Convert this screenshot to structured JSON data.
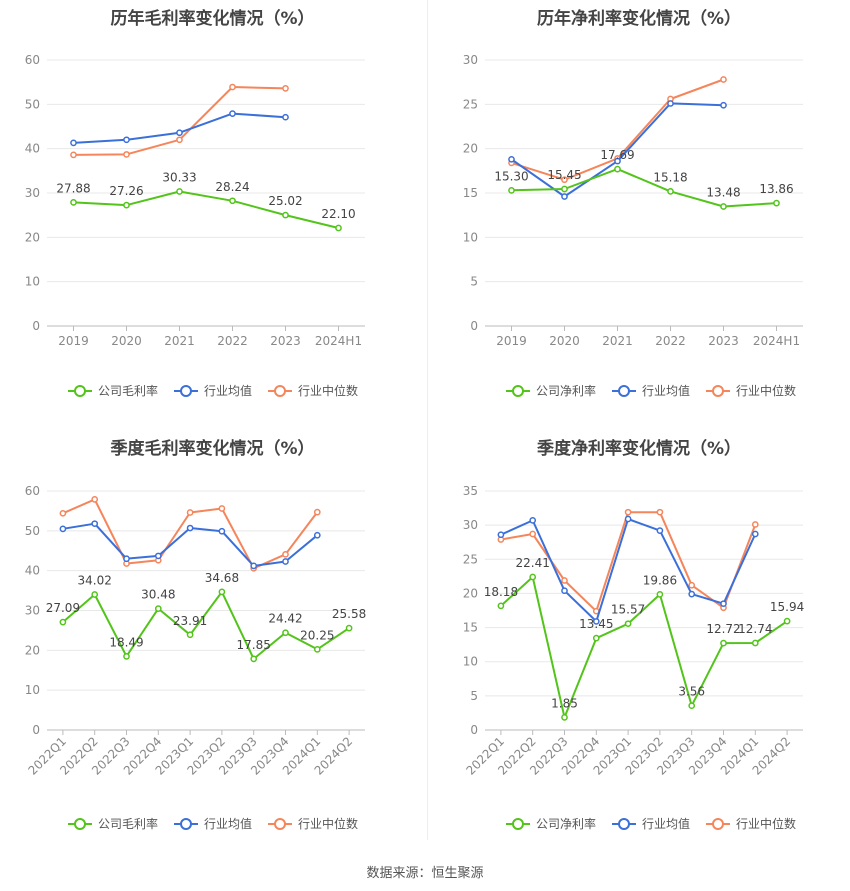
{
  "footer": "数据来源：恒生聚源",
  "chart_data": [
    {
      "type": "line",
      "title": "历年毛利率变化情况（%）",
      "categories": [
        "2019",
        "2020",
        "2021",
        "2022",
        "2023",
        "2024H1"
      ],
      "ylim": [
        0,
        60
      ],
      "yticks": [
        0,
        10,
        20,
        30,
        40,
        50,
        60
      ],
      "grid": true,
      "legend_position": "bottom",
      "series": [
        {
          "name": "公司毛利率",
          "color": "#52c41a",
          "labels": true,
          "values": [
            27.88,
            27.26,
            30.33,
            28.24,
            25.02,
            22.1
          ]
        },
        {
          "name": "行业均值",
          "color": "#3b6fd9",
          "labels": false,
          "values": [
            41.3,
            42.0,
            43.6,
            47.9,
            47.1,
            null
          ]
        },
        {
          "name": "行业中位数",
          "color": "#f5855a",
          "labels": false,
          "values": [
            38.6,
            38.7,
            42.0,
            53.9,
            53.6,
            null
          ]
        }
      ]
    },
    {
      "type": "line",
      "title": "历年净利率变化情况（%）",
      "categories": [
        "2019",
        "2020",
        "2021",
        "2022",
        "2023",
        "2024H1"
      ],
      "ylim": [
        0,
        30
      ],
      "yticks": [
        0,
        5,
        10,
        15,
        20,
        25,
        30
      ],
      "grid": true,
      "legend_position": "bottom",
      "series": [
        {
          "name": "公司净利率",
          "color": "#52c41a",
          "labels": true,
          "values": [
            15.3,
            15.45,
            17.69,
            15.18,
            13.48,
            13.86
          ]
        },
        {
          "name": "行业均值",
          "color": "#3b6fd9",
          "labels": false,
          "values": [
            18.8,
            14.6,
            18.6,
            25.1,
            24.9,
            null
          ]
        },
        {
          "name": "行业中位数",
          "color": "#f5855a",
          "labels": false,
          "values": [
            18.4,
            16.5,
            18.9,
            25.6,
            27.8,
            null
          ]
        }
      ]
    },
    {
      "type": "line",
      "title": "季度毛利率变化情况（%）",
      "categories": [
        "2022Q1",
        "2022Q2",
        "2022Q3",
        "2022Q4",
        "2023Q1",
        "2023Q2",
        "2023Q3",
        "2023Q4",
        "2024Q1",
        "2024Q2"
      ],
      "ylim": [
        0,
        60
      ],
      "yticks": [
        0,
        10,
        20,
        30,
        40,
        50,
        60
      ],
      "grid": true,
      "legend_position": "bottom",
      "series": [
        {
          "name": "公司毛利率",
          "color": "#52c41a",
          "labels": true,
          "values": [
            27.09,
            34.02,
            18.49,
            30.48,
            23.91,
            34.68,
            17.85,
            24.42,
            20.25,
            25.58
          ]
        },
        {
          "name": "行业均值",
          "color": "#3b6fd9",
          "labels": false,
          "values": [
            50.5,
            51.8,
            43.0,
            43.7,
            50.7,
            49.9,
            41.2,
            42.3,
            48.9,
            null
          ]
        },
        {
          "name": "行业中位数",
          "color": "#f5855a",
          "labels": false,
          "values": [
            54.4,
            57.9,
            41.8,
            42.6,
            54.6,
            55.6,
            40.6,
            44.1,
            54.7,
            null
          ]
        }
      ]
    },
    {
      "type": "line",
      "title": "季度净利率变化情况（%）",
      "categories": [
        "2022Q1",
        "2022Q2",
        "2022Q3",
        "2022Q4",
        "2023Q1",
        "2023Q2",
        "2023Q3",
        "2023Q4",
        "2024Q1",
        "2024Q2"
      ],
      "ylim": [
        0,
        35
      ],
      "yticks": [
        0,
        5,
        10,
        15,
        20,
        25,
        30,
        35
      ],
      "grid": true,
      "legend_position": "bottom",
      "series": [
        {
          "name": "公司净利率",
          "color": "#52c41a",
          "labels": true,
          "values": [
            18.18,
            22.41,
            1.85,
            13.45,
            15.57,
            19.86,
            3.56,
            12.72,
            12.74,
            15.94
          ]
        },
        {
          "name": "行业均值",
          "color": "#3b6fd9",
          "labels": false,
          "values": [
            28.6,
            30.7,
            20.4,
            15.9,
            30.9,
            29.2,
            19.9,
            18.5,
            28.7,
            null
          ]
        },
        {
          "name": "行业中位数",
          "color": "#f5855a",
          "labels": false,
          "values": [
            27.9,
            28.7,
            21.9,
            17.4,
            31.9,
            31.9,
            21.2,
            17.9,
            30.1,
            null
          ]
        }
      ]
    }
  ]
}
